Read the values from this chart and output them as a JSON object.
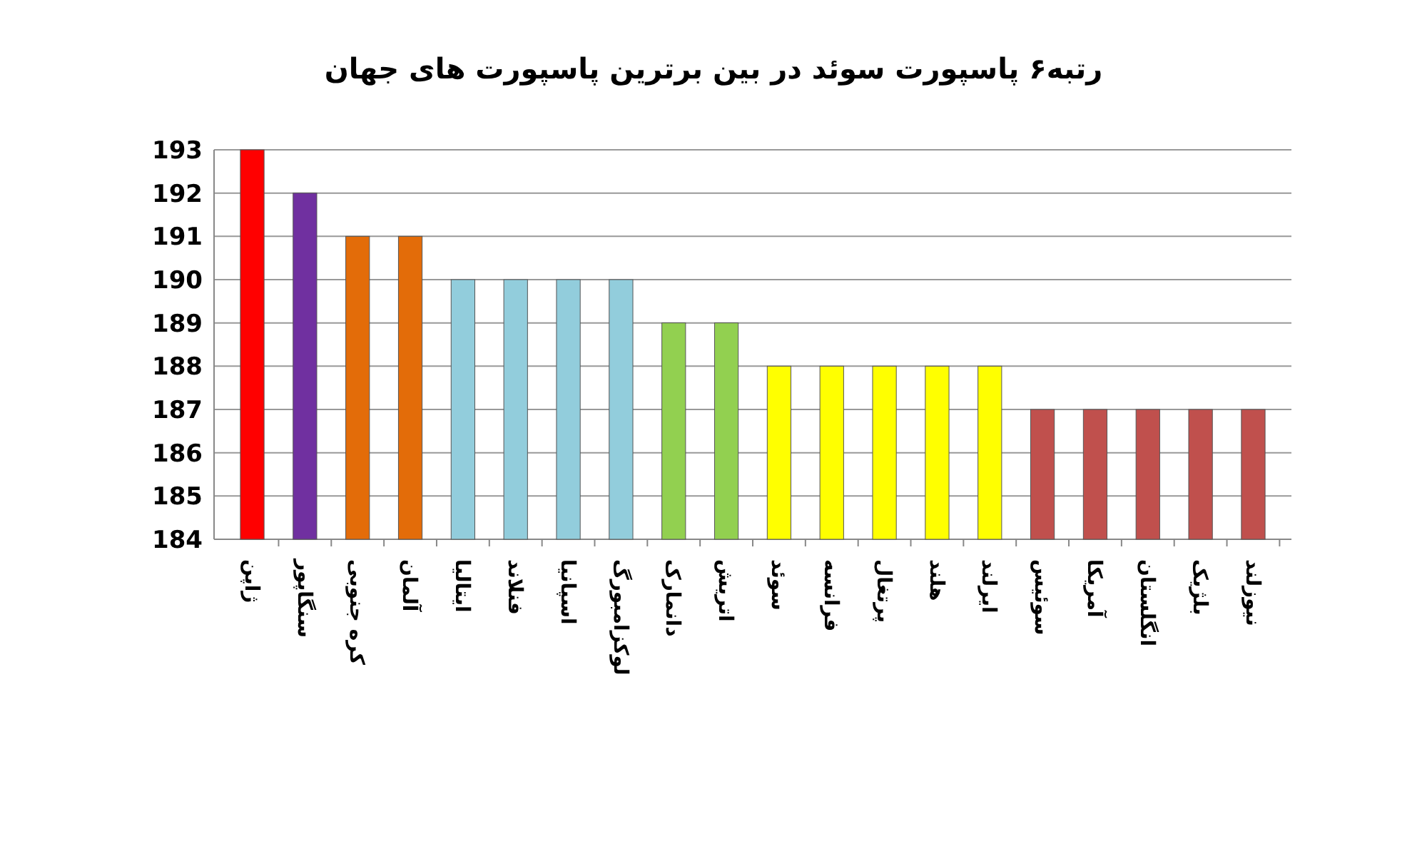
{
  "chart_data": {
    "type": "bar",
    "title": "رتبه۶ پاسپورت سوئد در بین برترین پاسپورت های جهان",
    "categories": [
      "ژاپن",
      "سنگاپور",
      "کره جنوبی",
      "آلمان",
      "ایتالیا",
      "فنلاند",
      "اسپانیا",
      "لوکزامبورگ",
      "دانمارک",
      "اتریش",
      "سوئد",
      "فرانسه",
      "پرتغال",
      "هلند",
      "ایرلند",
      "سوئیس",
      "آمریکا",
      "انگلستان",
      "بلژیک",
      "نیوزلند"
    ],
    "values": [
      193,
      192,
      191,
      191,
      190,
      190,
      190,
      190,
      189,
      189,
      188,
      188,
      188,
      188,
      188,
      187,
      187,
      187,
      187,
      187
    ],
    "colors": [
      "#ff0000",
      "#7030a0",
      "#e36c09",
      "#e36c09",
      "#92cddc",
      "#92cddc",
      "#92cddc",
      "#92cddc",
      "#92d050",
      "#92d050",
      "#ffff00",
      "#ffff00",
      "#ffff00",
      "#ffff00",
      "#ffff00",
      "#c0504d",
      "#c0504d",
      "#c0504d",
      "#c0504d",
      "#c0504d"
    ],
    "ylim": [
      184,
      193
    ],
    "yticks": [
      184,
      185,
      186,
      187,
      188,
      189,
      190,
      191,
      192,
      193
    ],
    "grid": "y"
  }
}
